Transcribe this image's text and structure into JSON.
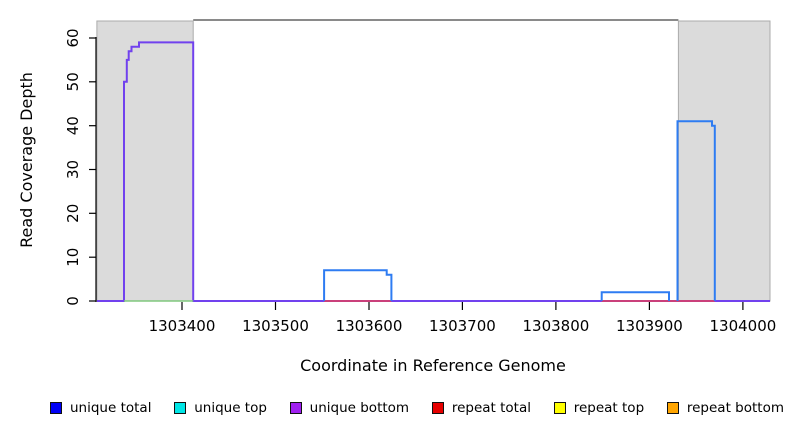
{
  "chart_data": {
    "type": "line",
    "title": "",
    "xlabel": "Coordinate in Reference Genome",
    "ylabel": "Read Coverage Depth",
    "xlim": [
      1303308,
      1304029
    ],
    "ylim": [
      0,
      60
    ],
    "xticks": [
      1303400,
      1303500,
      1303600,
      1303700,
      1303800,
      1303900,
      1304000
    ],
    "yticks": [
      0,
      10,
      20,
      30,
      40,
      50,
      60
    ],
    "grid": false,
    "legend_position": "bottom",
    "region_fill": "#DBDBDB",
    "region_stroke": "#ABABAB",
    "backbone_color": "#8A8A8A",
    "shaded_regions": [
      {
        "x0": 1303309,
        "x1": 1303412
      },
      {
        "x0": 1303931,
        "x1": 1304029
      }
    ],
    "series": [
      {
        "name": "unique bottom",
        "color": "#7141EE",
        "width": 2,
        "paths": [
          [
            [
              1303309,
              0
            ],
            [
              1303338,
              0
            ],
            [
              1303338,
              50
            ],
            [
              1303341,
              50
            ],
            [
              1303341,
              55
            ],
            [
              1303343,
              55
            ],
            [
              1303343,
              57
            ],
            [
              1303346,
              57
            ],
            [
              1303346,
              58
            ],
            [
              1303354,
              58
            ],
            [
              1303354,
              59
            ],
            [
              1303412,
              59
            ],
            [
              1303412,
              0
            ],
            [
              1304029,
              0
            ]
          ]
        ]
      },
      {
        "name": "green baseline segment",
        "color": "#80C87E",
        "width": 1.6,
        "paths": [
          [
            [
              1303338,
              0
            ],
            [
              1303412,
              0
            ]
          ]
        ]
      },
      {
        "name": "repeat total",
        "color": "#E84055",
        "width": 1.6,
        "paths": [
          [
            [
              1303552,
              0
            ],
            [
              1303624,
              0
            ]
          ],
          [
            [
              1303849,
              0
            ],
            [
              1303970,
              0
            ]
          ]
        ]
      },
      {
        "name": "unique total",
        "color": "#2E7CF2",
        "width": 2,
        "paths": [
          [
            [
              1303552,
              0
            ],
            [
              1303552,
              7
            ],
            [
              1303619,
              7
            ],
            [
              1303619,
              6
            ],
            [
              1303624,
              6
            ],
            [
              1303624,
              0
            ]
          ],
          [
            [
              1303849,
              0
            ],
            [
              1303849,
              2
            ],
            [
              1303921,
              2
            ],
            [
              1303921,
              0
            ]
          ],
          [
            [
              1303930,
              0
            ],
            [
              1303930,
              41
            ],
            [
              1303967,
              41
            ],
            [
              1303967,
              40
            ],
            [
              1303970,
              40
            ],
            [
              1303970,
              0
            ]
          ]
        ]
      }
    ],
    "legend": [
      {
        "label": "unique total",
        "color": "#0000F5"
      },
      {
        "label": "unique top",
        "color": "#00E6E6"
      },
      {
        "label": "unique bottom",
        "color": "#A020F0"
      },
      {
        "label": "repeat total",
        "color": "#E60000"
      },
      {
        "label": "repeat top",
        "color": "#FFFF00"
      },
      {
        "label": "repeat bottom",
        "color": "#FFA500"
      }
    ]
  }
}
